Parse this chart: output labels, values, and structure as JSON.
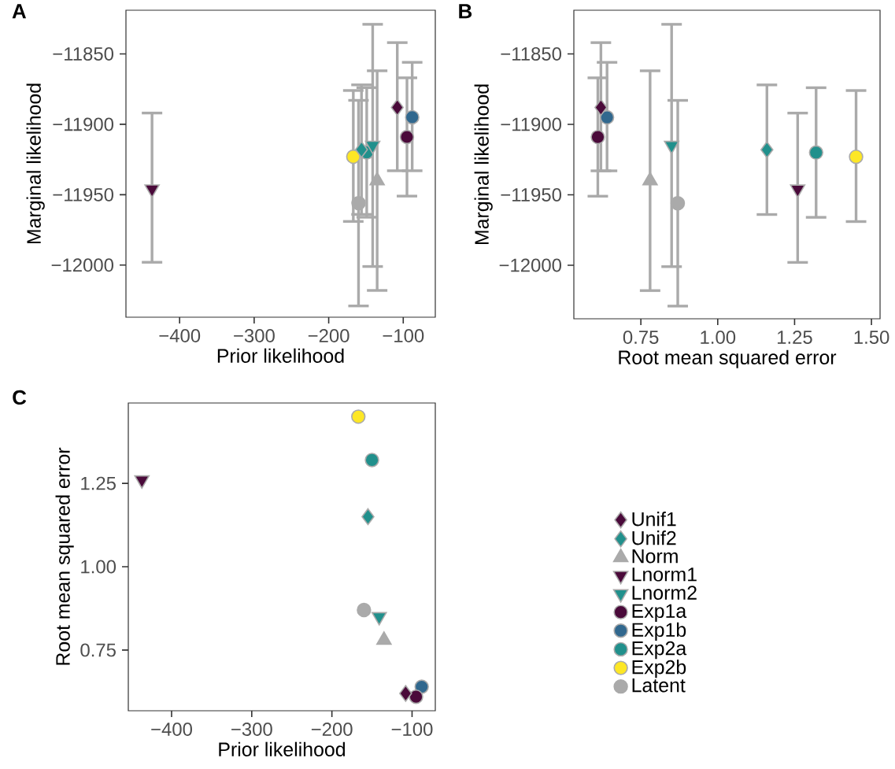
{
  "chart_data": [
    {
      "type": "scatter",
      "title": "A",
      "xlabel": "Prior likelihood",
      "ylabel": "Marginal likelihood",
      "xlim": [
        -472,
        -57
      ],
      "ylim": [
        -12037,
        -11819
      ],
      "xticks": [
        {
          "value": -400,
          "label": "−400"
        },
        {
          "value": -300,
          "label": "−300"
        },
        {
          "value": -200,
          "label": "−200"
        },
        {
          "value": -100,
          "label": "−100"
        }
      ],
      "yticks": [
        {
          "value": -12000,
          "label": "−12000"
        },
        {
          "value": -11950,
          "label": "−11950"
        },
        {
          "value": -11900,
          "label": "−11900"
        },
        {
          "value": -11850,
          "label": "−11850"
        }
      ],
      "series": [
        {
          "color": "#4a0a3a",
          "marker": "diamond",
          "x": [
            -108
          ],
          "values": [
            -11888
          ],
          "errors": [
            [
              -11933,
              -11842
            ]
          ]
        },
        {
          "color": "#21908c",
          "marker": "diamond",
          "x": [
            -156
          ],
          "values": [
            -11918
          ],
          "errors": [
            [
              -11964,
              -11872
            ]
          ]
        },
        {
          "color": "#aaaaaa",
          "marker": "triangle",
          "x": [
            -135
          ],
          "values": [
            -11940
          ],
          "errors": [
            [
              -12018,
              -11862
            ]
          ]
        },
        {
          "color": "#4a0a3a",
          "marker": "triangle_down",
          "x": [
            -437
          ],
          "values": [
            -11946
          ],
          "errors": [
            [
              -11998,
              -11892
            ]
          ]
        },
        {
          "color": "#21908c",
          "marker": "triangle_down",
          "x": [
            -141
          ],
          "values": [
            -11915
          ],
          "errors": [
            [
              -12001,
              -11829
            ]
          ]
        },
        {
          "color": "#4a0a3a",
          "marker": "circle",
          "x": [
            -95
          ],
          "values": [
            -11909
          ],
          "errors": [
            [
              -11951,
              -11867
            ]
          ]
        },
        {
          "color": "#31688e",
          "marker": "circle",
          "x": [
            -88
          ],
          "values": [
            -11895
          ],
          "errors": [
            [
              -11933,
              -11856
            ]
          ]
        },
        {
          "color": "#21908c",
          "marker": "circle",
          "x": [
            -149
          ],
          "values": [
            -11920
          ],
          "errors": [
            [
              -11966,
              -11874
            ]
          ]
        },
        {
          "color": "#fde725",
          "marker": "circle",
          "x": [
            -167
          ],
          "values": [
            -11923
          ],
          "errors": [
            [
              -11969,
              -11876
            ]
          ]
        },
        {
          "color": "#aaaaaa",
          "marker": "circle",
          "x": [
            -160
          ],
          "values": [
            -11956
          ],
          "errors": [
            [
              -12029,
              -11883
            ]
          ]
        }
      ]
    },
    {
      "type": "scatter",
      "title": "B",
      "xlabel": "Root mean squared error",
      "ylabel": "Marginal likelihood",
      "xlim": [
        0.532,
        1.528
      ],
      "ylim": [
        -12038,
        -11819
      ],
      "xticks": [
        {
          "value": 0.75,
          "label": "0.75"
        },
        {
          "value": 1.0,
          "label": "1.00"
        },
        {
          "value": 1.25,
          "label": "1.25"
        },
        {
          "value": 1.5,
          "label": "1.50"
        }
      ],
      "yticks": [
        {
          "value": -12000,
          "label": "−12000"
        },
        {
          "value": -11950,
          "label": "−11950"
        },
        {
          "value": -11900,
          "label": "−11900"
        },
        {
          "value": -11850,
          "label": "−11850"
        }
      ],
      "series": [
        {
          "color": "#4a0a3a",
          "marker": "diamond",
          "x": [
            0.62
          ],
          "values": [
            -11888
          ],
          "errors": [
            [
              -11933,
              -11842
            ]
          ]
        },
        {
          "color": "#21908c",
          "marker": "diamond",
          "x": [
            1.16
          ],
          "values": [
            -11918
          ],
          "errors": [
            [
              -11964,
              -11872
            ]
          ]
        },
        {
          "color": "#aaaaaa",
          "marker": "triangle",
          "x": [
            0.78
          ],
          "values": [
            -11940
          ],
          "errors": [
            [
              -12018,
              -11862
            ]
          ]
        },
        {
          "color": "#4a0a3a",
          "marker": "triangle_down",
          "x": [
            1.26
          ],
          "values": [
            -11946
          ],
          "errors": [
            [
              -11998,
              -11892
            ]
          ]
        },
        {
          "color": "#21908c",
          "marker": "triangle_down",
          "x": [
            0.85
          ],
          "values": [
            -11915
          ],
          "errors": [
            [
              -12001,
              -11829
            ]
          ]
        },
        {
          "color": "#4a0a3a",
          "marker": "circle",
          "x": [
            0.61
          ],
          "values": [
            -11909
          ],
          "errors": [
            [
              -11951,
              -11867
            ]
          ]
        },
        {
          "color": "#31688e",
          "marker": "circle",
          "x": [
            0.64
          ],
          "values": [
            -11895
          ],
          "errors": [
            [
              -11933,
              -11856
            ]
          ]
        },
        {
          "color": "#21908c",
          "marker": "circle",
          "x": [
            1.32
          ],
          "values": [
            -11920
          ],
          "errors": [
            [
              -11966,
              -11874
            ]
          ]
        },
        {
          "color": "#fde725",
          "marker": "circle",
          "x": [
            1.45
          ],
          "values": [
            -11923
          ],
          "errors": [
            [
              -11969,
              -11876
            ]
          ]
        },
        {
          "color": "#aaaaaa",
          "marker": "circle",
          "x": [
            0.87
          ],
          "values": [
            -11956
          ],
          "errors": [
            [
              -12029,
              -11883
            ]
          ]
        }
      ]
    },
    {
      "type": "scatter",
      "title": "C",
      "xlabel": "Prior likelihood",
      "ylabel": "Root mean squared error",
      "xlim": [
        -454,
        -71
      ],
      "ylim": [
        0.568,
        1.491
      ],
      "legend": "right",
      "xticks": [
        {
          "value": -400,
          "label": "−400"
        },
        {
          "value": -300,
          "label": "−300"
        },
        {
          "value": -200,
          "label": "−200"
        },
        {
          "value": -100,
          "label": "−100"
        }
      ],
      "yticks": [
        {
          "value": 0.75,
          "label": "0.75"
        },
        {
          "value": 1.0,
          "label": "1.00"
        },
        {
          "value": 1.25,
          "label": "1.25"
        }
      ],
      "series": [
        {
          "name": "Unif1",
          "color": "#4a0a3a",
          "marker": "diamond",
          "x": [
            -108
          ],
          "values": [
            0.62
          ]
        },
        {
          "name": "Unif2",
          "color": "#21908c",
          "marker": "diamond",
          "x": [
            -155
          ],
          "values": [
            1.15
          ]
        },
        {
          "name": "Norm",
          "color": "#aaaaaa",
          "marker": "triangle",
          "x": [
            -135
          ],
          "values": [
            0.78
          ]
        },
        {
          "name": "Lnorm1",
          "color": "#4a0a3a",
          "marker": "triangle_down",
          "x": [
            -437
          ],
          "values": [
            1.26
          ]
        },
        {
          "name": "Lnorm2",
          "color": "#21908c",
          "marker": "triangle_down",
          "x": [
            -141
          ],
          "values": [
            0.85
          ]
        },
        {
          "name": "Exp1a",
          "color": "#4a0a3a",
          "marker": "circle",
          "x": [
            -95
          ],
          "values": [
            0.61
          ]
        },
        {
          "name": "Exp1b",
          "color": "#31688e",
          "marker": "circle",
          "x": [
            -88
          ],
          "values": [
            0.64
          ]
        },
        {
          "name": "Exp2a",
          "color": "#21908c",
          "marker": "circle",
          "x": [
            -150
          ],
          "values": [
            1.32
          ]
        },
        {
          "name": "Exp2b",
          "color": "#fde725",
          "marker": "circle",
          "x": [
            -167
          ],
          "values": [
            1.45
          ]
        },
        {
          "name": "Latent",
          "color": "#aaaaaa",
          "marker": "circle",
          "x": [
            -160
          ],
          "values": [
            0.87
          ]
        }
      ]
    }
  ]
}
